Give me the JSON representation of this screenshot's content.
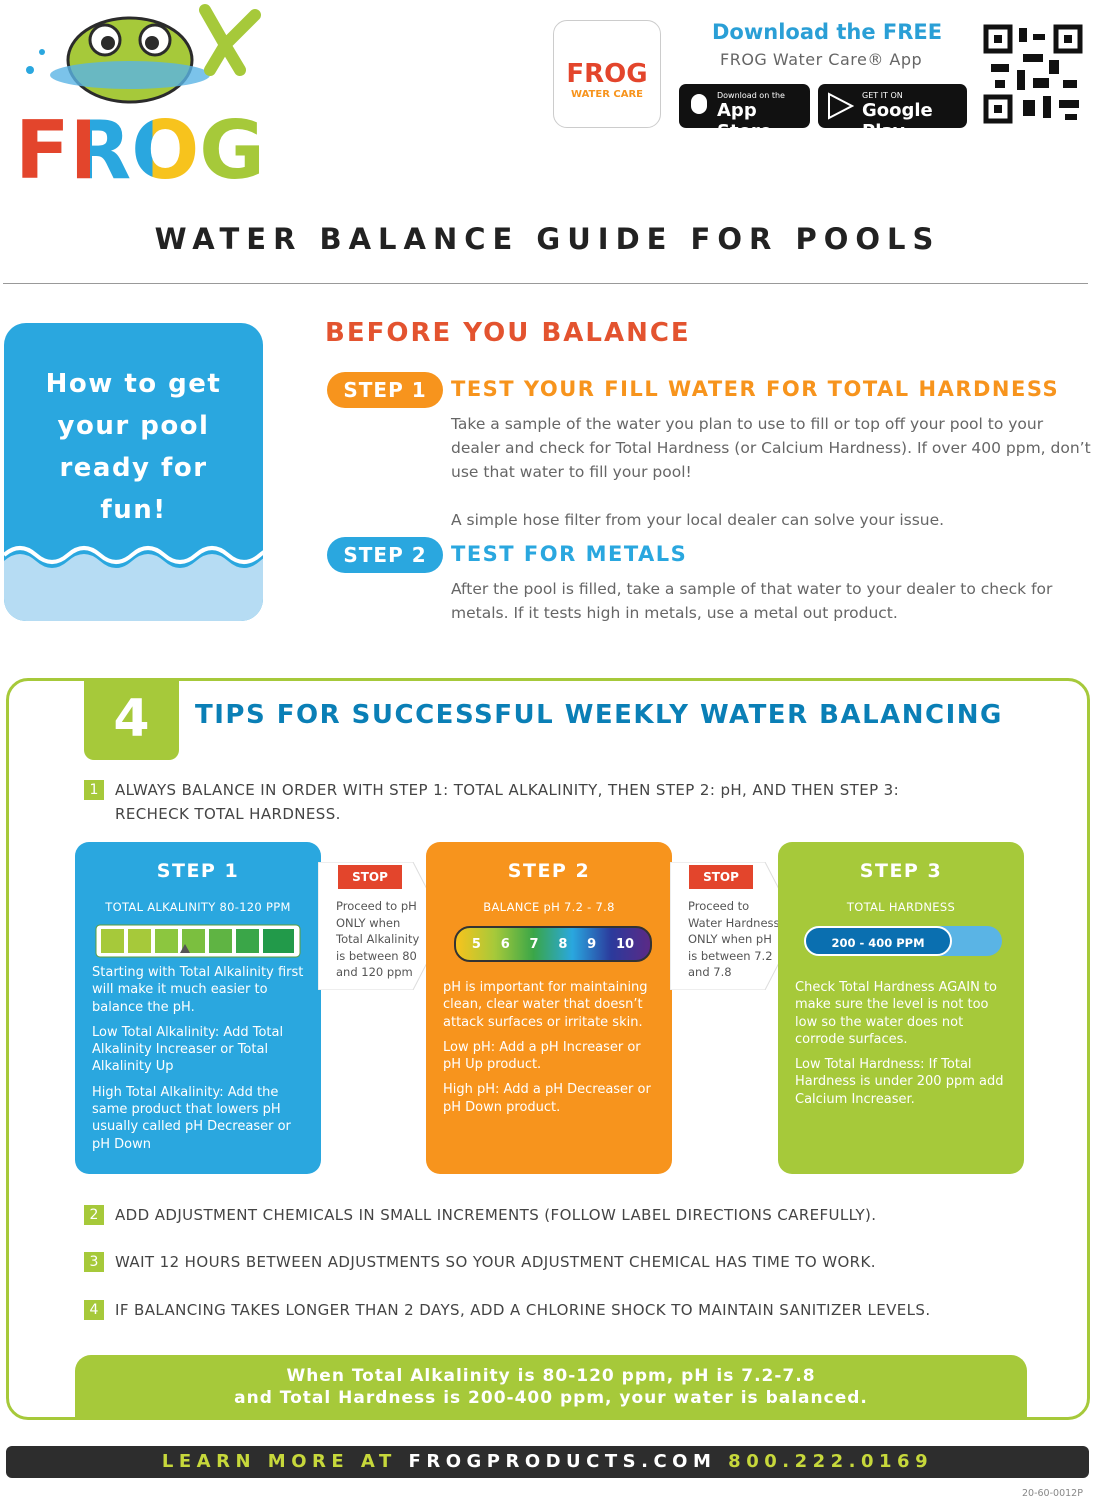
{
  "header": {
    "logo": "FROG",
    "app_icon": {
      "brand": "FROG",
      "sub": "WATER CARE"
    },
    "download_title": "Download the FREE",
    "download_sub": "FROG Water Care® App",
    "app_store": {
      "small": "Download on the",
      "big": "App Store"
    },
    "google_play": {
      "small": "GET IT ON",
      "big": "Google Play"
    }
  },
  "title": "WATER BALANCE GUIDE FOR POOLS",
  "before": {
    "banner": "How to get your pool ready for fun!",
    "heading": "BEFORE YOU BALANCE",
    "steps": [
      {
        "badge": "STEP 1",
        "title": "TEST YOUR FILL WATER FOR TOTAL HARDNESS",
        "paragraphs": [
          "Take a sample of the water you plan to use to fill or top off your pool to your dealer and check for Total Hardness (or Calcium Hardness). If over 400 ppm, don’t use that water to fill your pool!",
          "A simple hose filter from your local dealer can solve your issue."
        ]
      },
      {
        "badge": "STEP 2",
        "title": "TEST FOR METALS",
        "paragraphs": [
          "After the pool is filled, take a sample of that water to your dealer to check for metals. If it tests high in metals, use a metal out product."
        ]
      }
    ]
  },
  "tips": {
    "number": "4",
    "heading": "TIPS FOR SUCCESSFUL WEEKLY WATER BALANCING",
    "items": [
      {
        "num": "1",
        "text": "ALWAYS BALANCE IN ORDER WITH STEP 1: TOTAL ALKALINITY, THEN STEP 2: pH, AND THEN STEP 3: RECHECK TOTAL HARDNESS."
      },
      {
        "num": "2",
        "text": "ADD ADJUSTMENT CHEMICALS IN SMALL INCREMENTS (FOLLOW LABEL DIRECTIONS CAREFULLY)."
      },
      {
        "num": "3",
        "text": "WAIT 12 HOURS BETWEEN ADJUSTMENTS SO YOUR ADJUSTMENT CHEMICAL HAS TIME TO WORK."
      },
      {
        "num": "4",
        "text": "IF BALANCING TAKES LONGER THAN 2 DAYS, ADD A CHLORINE SHOCK TO MAINTAIN SANITIZER LEVELS."
      }
    ],
    "steps": [
      {
        "title": "STEP 1",
        "label": "TOTAL ALKALINITY 80-120 PPM",
        "paragraphs": [
          "Starting with Total Alkalinity first will make it much easier to balance the pH.",
          "Low Total Alkalinity: Add Total Alkalinity Increaser or Total Alkalinity Up",
          "High Total Alkalinity: Add the same product that lowers pH usually called pH Decreaser or pH Down"
        ]
      },
      {
        "title": "STEP 2",
        "label": "BALANCE pH 7.2 - 7.8",
        "scale": [
          "5",
          "6",
          "7",
          "8",
          "9",
          "10"
        ],
        "paragraphs": [
          "pH is important for maintaining clean, clear water that doesn’t attack surfaces or irritate skin.",
          "Low pH: Add a pH Increaser or pH Up product.",
          "High pH: Add a pH Decreaser or pH Down product."
        ]
      },
      {
        "title": "STEP 3",
        "label": "TOTAL HARDNESS",
        "bar": "200 - 400 PPM",
        "paragraphs": [
          "Check Total Hardness AGAIN to make sure the level is not too low so the water does not corrode surfaces.",
          "Low Total Hardness: If Total Hardness is under 200 ppm add Calcium Increaser."
        ]
      }
    ],
    "stops": [
      {
        "label": "STOP",
        "text": "Proceed to pH ONLY when Total Alkalinity is between 80 and 120 ppm"
      },
      {
        "label": "STOP",
        "text": "Proceed to Water Hardness ONLY when pH is between 7.2 and 7.8"
      }
    ],
    "summary": [
      "When Total Alkalinity is 80-120 ppm, pH is 7.2-7.8",
      "and Total Hardness is 200-400 ppm, your water is balanced."
    ]
  },
  "footer": {
    "learn": "LEARN MORE AT",
    "site": "FROGPRODUCTS.COM",
    "phone": "800.222.0169",
    "code": "20-60-0012P"
  }
}
